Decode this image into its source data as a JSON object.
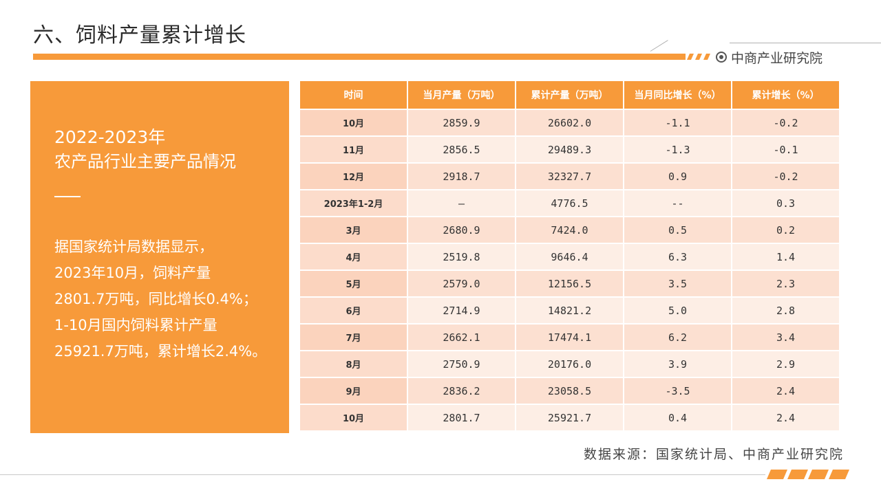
{
  "header": {
    "title": "六、饲料产量累计增长",
    "brand": "中商产业研究院"
  },
  "left_panel": {
    "years": "2022-2023年",
    "subtitle": "农产品行业主要产品情况",
    "body_lines": [
      "据国家统计局数据显示，",
      "2023年10月，饲料产量",
      "2801.7万吨，同比增长0.4%；",
      "1-10月国内饲料累计产量",
      "25921.7万吨，累计增长2.4%。"
    ]
  },
  "table": {
    "headers": [
      "时间",
      "当月产量（万吨）",
      "累计产量（万吨）",
      "当月同比增长（%）",
      "累计增长（%）"
    ],
    "rows": [
      [
        "10月",
        "2859.9",
        "26602.0",
        "-1.1",
        "-0.2"
      ],
      [
        "11月",
        "2856.5",
        "29489.3",
        "-1.3",
        "-0.1"
      ],
      [
        "12月",
        "2918.7",
        "32327.7",
        "0.9",
        "-0.2"
      ],
      [
        "2023年1-2月",
        "—",
        "4776.5",
        "--",
        "0.3"
      ],
      [
        "3月",
        "2680.9",
        "7424.0",
        "0.5",
        "0.2"
      ],
      [
        "4月",
        "2519.8",
        "9646.4",
        "6.3",
        "1.4"
      ],
      [
        "5月",
        "2579.0",
        "12156.5",
        "3.5",
        "2.3"
      ],
      [
        "6月",
        "2714.9",
        "14821.2",
        "5.0",
        "2.8"
      ],
      [
        "7月",
        "2662.1",
        "17474.1",
        "6.2",
        "3.4"
      ],
      [
        "8月",
        "2750.9",
        "20176.0",
        "3.9",
        "2.9"
      ],
      [
        "9月",
        "2836.2",
        "23058.5",
        "-3.5",
        "2.4"
      ],
      [
        "10月",
        "2801.7",
        "25921.7",
        "0.4",
        "2.4"
      ]
    ]
  },
  "source": "数据来源：国家统计局、中商产业研究院",
  "colors": {
    "accent": "#f79a3a",
    "row_light": "#fdeee5",
    "row_dark": "#fce0d1"
  }
}
